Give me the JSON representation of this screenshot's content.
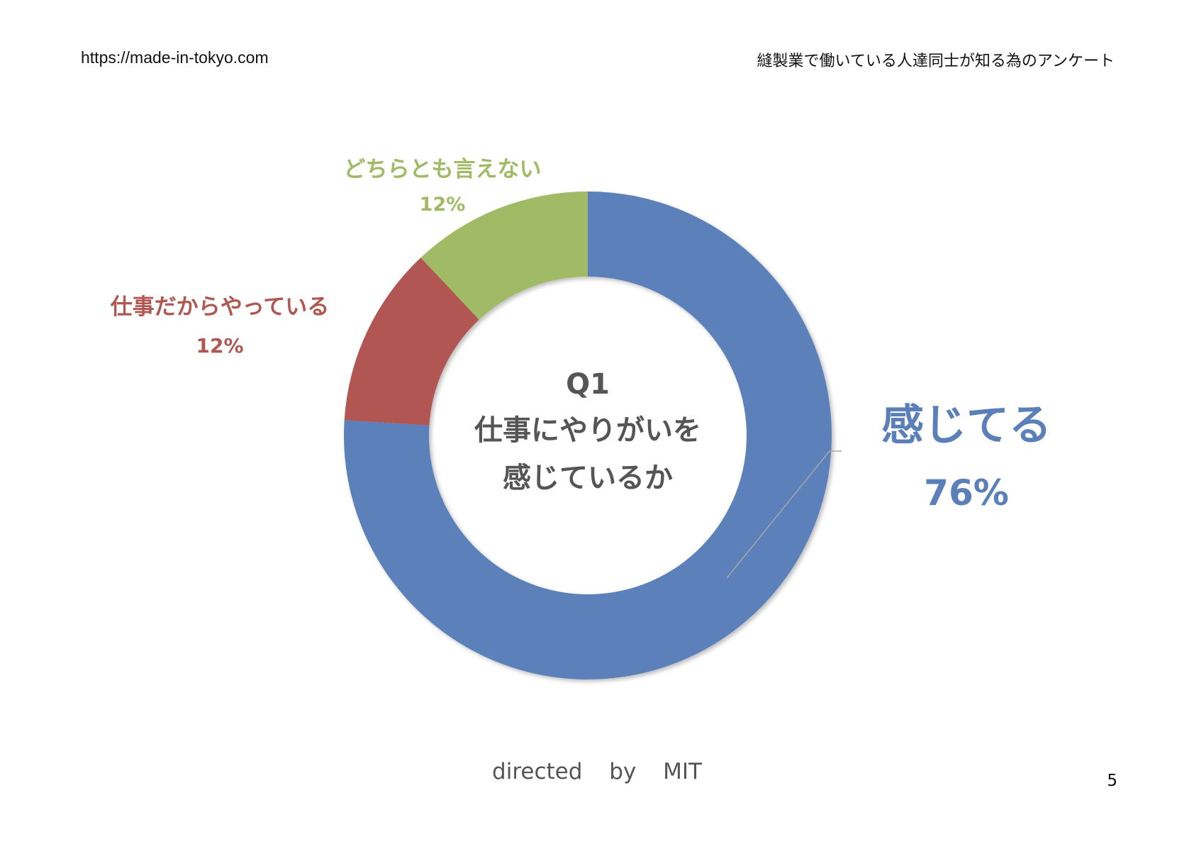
{
  "header": {
    "url": "https://made-in-tokyo.com",
    "title": "縫製業で働いている人達同士が知る為のアンケート"
  },
  "chart_data": {
    "type": "donut",
    "center_label": [
      "Q1",
      "仕事にやりがいを",
      "感じているか"
    ],
    "series": [
      {
        "name": "感じてる",
        "value": 76,
        "label": "76%",
        "color": "#5b80b9"
      },
      {
        "name": "仕事だからやっている",
        "value": 12,
        "label": "12%",
        "color": "#b15752"
      },
      {
        "name": "どちらとも言えない",
        "value": 12,
        "label": "12%",
        "color": "#a1ba66"
      }
    ]
  },
  "footer": {
    "credit": "directed by MIT",
    "page_number": "5"
  }
}
